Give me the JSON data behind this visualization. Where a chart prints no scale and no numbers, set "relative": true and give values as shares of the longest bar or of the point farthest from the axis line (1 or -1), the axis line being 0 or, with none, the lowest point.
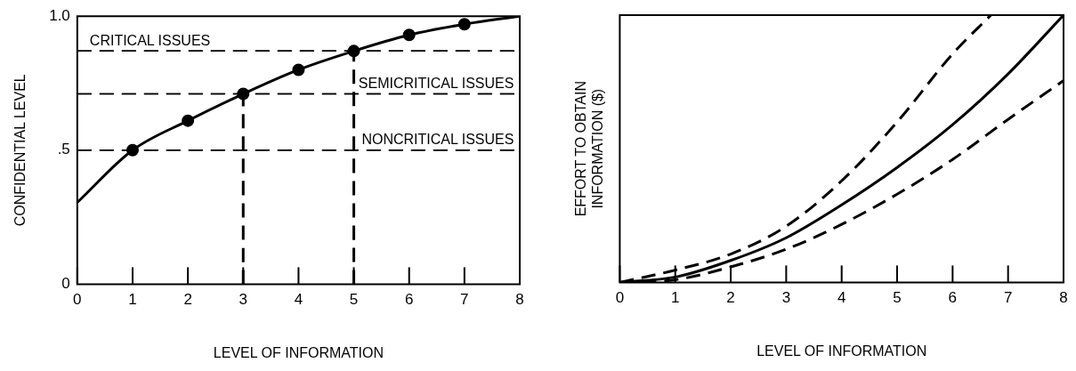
{
  "chart_data": [
    {
      "type": "line",
      "xlabel": "LEVEL OF INFORMATION",
      "ylabel": "CONFIDENTIAL LEVEL",
      "xlim": [
        0,
        8
      ],
      "xticks": [
        0,
        1,
        2,
        3,
        4,
        5,
        6,
        7,
        8
      ],
      "ylim": [
        0,
        1
      ],
      "yticks": [
        0,
        {
          "value": 0.5,
          "label": ".5"
        },
        {
          "value": 1,
          "label": "1.0"
        }
      ],
      "series": [
        {
          "type": "line",
          "color": "#000000",
          "line_style": "solid",
          "marker": "none",
          "x": [
            0,
            1,
            2,
            3,
            4,
            5,
            6,
            7,
            8
          ],
          "values": [
            0.305,
            0.5,
            0.61,
            0.71,
            0.8,
            0.87,
            0.93,
            0.97,
            1.0
          ]
        },
        {
          "type": "scatter",
          "color": "#000000",
          "marker": "circle",
          "x": [
            1,
            2,
            3,
            4,
            5,
            6,
            7
          ],
          "values": [
            0.5,
            0.61,
            0.71,
            0.8,
            0.87,
            0.93,
            0.97
          ]
        },
        {
          "type": "line",
          "color": "#000000",
          "line_style": "dashed",
          "marker": "none",
          "x": [
            3,
            3
          ],
          "values": [
            0,
            0.71
          ]
        },
        {
          "type": "line",
          "color": "#000000",
          "line_style": "dashed",
          "marker": "none",
          "x": [
            5,
            5
          ],
          "values": [
            0,
            0.87
          ]
        }
      ],
      "ref_lines": [
        {
          "axis": "y",
          "value": 0.87,
          "label": "CRITICAL ISSUES",
          "line_style": "dashed"
        },
        {
          "axis": "y",
          "value": 0.71,
          "label": "SEMICRITICAL ISSUES",
          "line_style": "dashed"
        },
        {
          "axis": "y",
          "value": 0.5,
          "label": "NONCRITICAL ISSUES",
          "line_style": "dashed"
        }
      ]
    },
    {
      "type": "line",
      "relative": true,
      "xlabel": "LEVEL OF INFORMATION",
      "ylabel": "EFFORT TO OBTAIN\nINFORMATION ($)",
      "tick_labels": "x",
      "xlim": [
        0,
        8
      ],
      "xticks": [
        0,
        1,
        2,
        3,
        4,
        5,
        6,
        7,
        8
      ],
      "series": [
        {
          "type": "line",
          "color": "#000000",
          "line_style": "solid",
          "x": [
            0,
            1,
            2,
            3,
            4,
            5,
            6,
            7,
            8
          ],
          "values": [
            0,
            0.02,
            0.082,
            0.167,
            0.29,
            0.43,
            0.59,
            0.78,
            1.0
          ]
        },
        {
          "type": "line",
          "color": "#000000",
          "line_style": "dashed",
          "x": [
            0,
            1,
            2,
            3,
            4,
            5,
            6,
            6.69
          ],
          "values": [
            0,
            0.046,
            0.106,
            0.21,
            0.38,
            0.6,
            0.855,
            1.0
          ]
        },
        {
          "type": "line",
          "color": "#000000",
          "line_style": "dashed",
          "x": [
            0,
            1,
            2,
            3,
            4,
            5,
            6,
            7,
            8
          ],
          "values": [
            0,
            0.01,
            0.058,
            0.124,
            0.217,
            0.33,
            0.46,
            0.61,
            0.755
          ]
        }
      ]
    }
  ]
}
